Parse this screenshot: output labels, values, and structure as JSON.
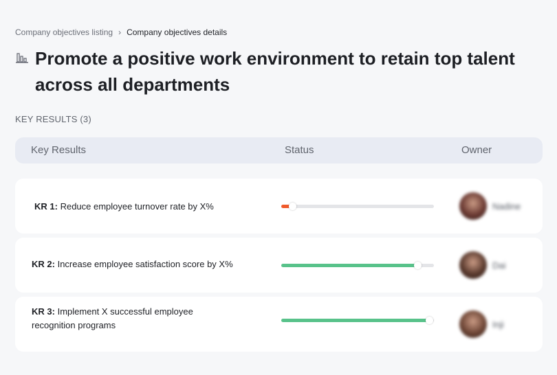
{
  "breadcrumb": {
    "parent": "Company objectives listing",
    "separator": "›",
    "current": "Company objectives details"
  },
  "objective": {
    "title": "Promote a positive work environment to retain top talent across all departments",
    "icon": "building-chart-icon"
  },
  "key_results_label": "KEY RESULTS (3)",
  "table": {
    "headers": {
      "key_results": "Key Results",
      "status": "Status",
      "owner": "Owner"
    }
  },
  "key_results": [
    {
      "prefix": "KR 1:",
      "text": "Reduce employee turnover rate by X%",
      "progress": 0.07,
      "color": "#f05a2b",
      "owner": "Nadine",
      "avatar_color": "#6b3a33"
    },
    {
      "prefix": "KR 2:",
      "text": "Increase employee satisfaction score by X%",
      "progress": 0.89,
      "color": "#58c28a",
      "owner": "Dai",
      "avatar_color": "#5a3a2e"
    },
    {
      "prefix": "KR 3:",
      "text": "Implement X successful employee recognition programs",
      "progress": 0.97,
      "color": "#58c28a",
      "owner": "Inji",
      "avatar_color": "#6e4636"
    }
  ]
}
